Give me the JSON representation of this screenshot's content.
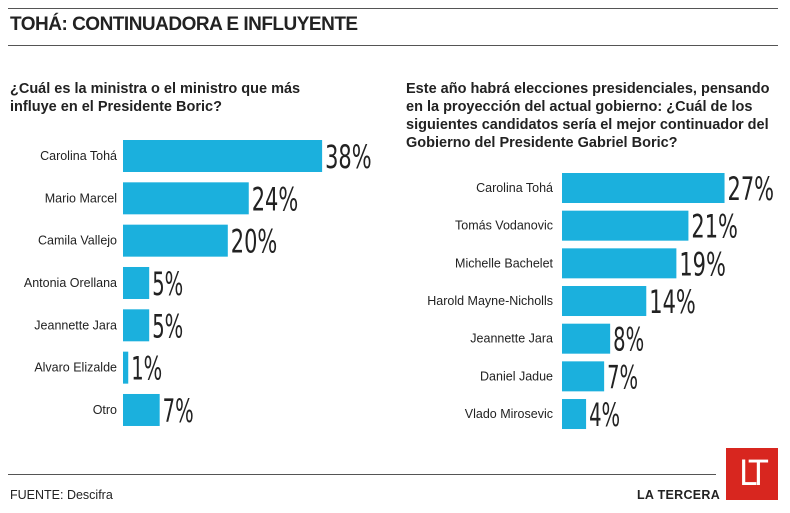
{
  "title": "TOHÁ: CONTINUADORA E INFLUYENTE",
  "source": "FUENTE: Descifra",
  "brand": "LA TERCERA",
  "logo_text": "LT",
  "colors": {
    "bar": "#1bb0dd",
    "text": "#222222",
    "logo": "#d8261f"
  },
  "chart_data": [
    {
      "type": "bar",
      "orientation": "horizontal",
      "title": "¿Cuál es la ministra o el ministro que más influye en el Presidente Boric?",
      "title_lines": [
        "¿Cuál es la ministra o el ministro que más",
        "influye en el Presidente Boric?"
      ],
      "categories": [
        "Carolina Tohá",
        "Mario Marcel",
        "Camila Vallejo",
        "Antonia Orellana",
        "Jeannette Jara",
        "Alvaro Elizalde",
        "Otro"
      ],
      "values": [
        38,
        24,
        20,
        5,
        5,
        1,
        7
      ],
      "labels": [
        "38%",
        "24%",
        "20%",
        "5%",
        "5%",
        "1%",
        "7%"
      ],
      "unit": "%"
    },
    {
      "type": "bar",
      "orientation": "horizontal",
      "title": "Este año habrá elecciones presidenciales, pensando en la proyección del actual gobierno: ¿Cuál de los siguientes candidatos sería el mejor continuador del Gobierno del Presidente Gabriel Boric?",
      "title_lines": [
        "Este año habrá elecciones presidenciales, pensando",
        "en la proyección del actual gobierno: ¿Cuál de los",
        "siguientes candidatos sería el mejor continuador del",
        "Gobierno del Presidente Gabriel Boric?"
      ],
      "categories": [
        "Carolina Tohá",
        "Tomás Vodanovic",
        "Michelle Bachelet",
        "Harold Mayne-Nicholls",
        "Jeannette Jara",
        "Daniel Jadue",
        "Vlado Mirosevic"
      ],
      "values": [
        27,
        21,
        19,
        14,
        8,
        7,
        4
      ],
      "labels": [
        "27%",
        "21%",
        "19%",
        "14%",
        "8%",
        "7%",
        "4%"
      ],
      "unit": "%"
    }
  ]
}
